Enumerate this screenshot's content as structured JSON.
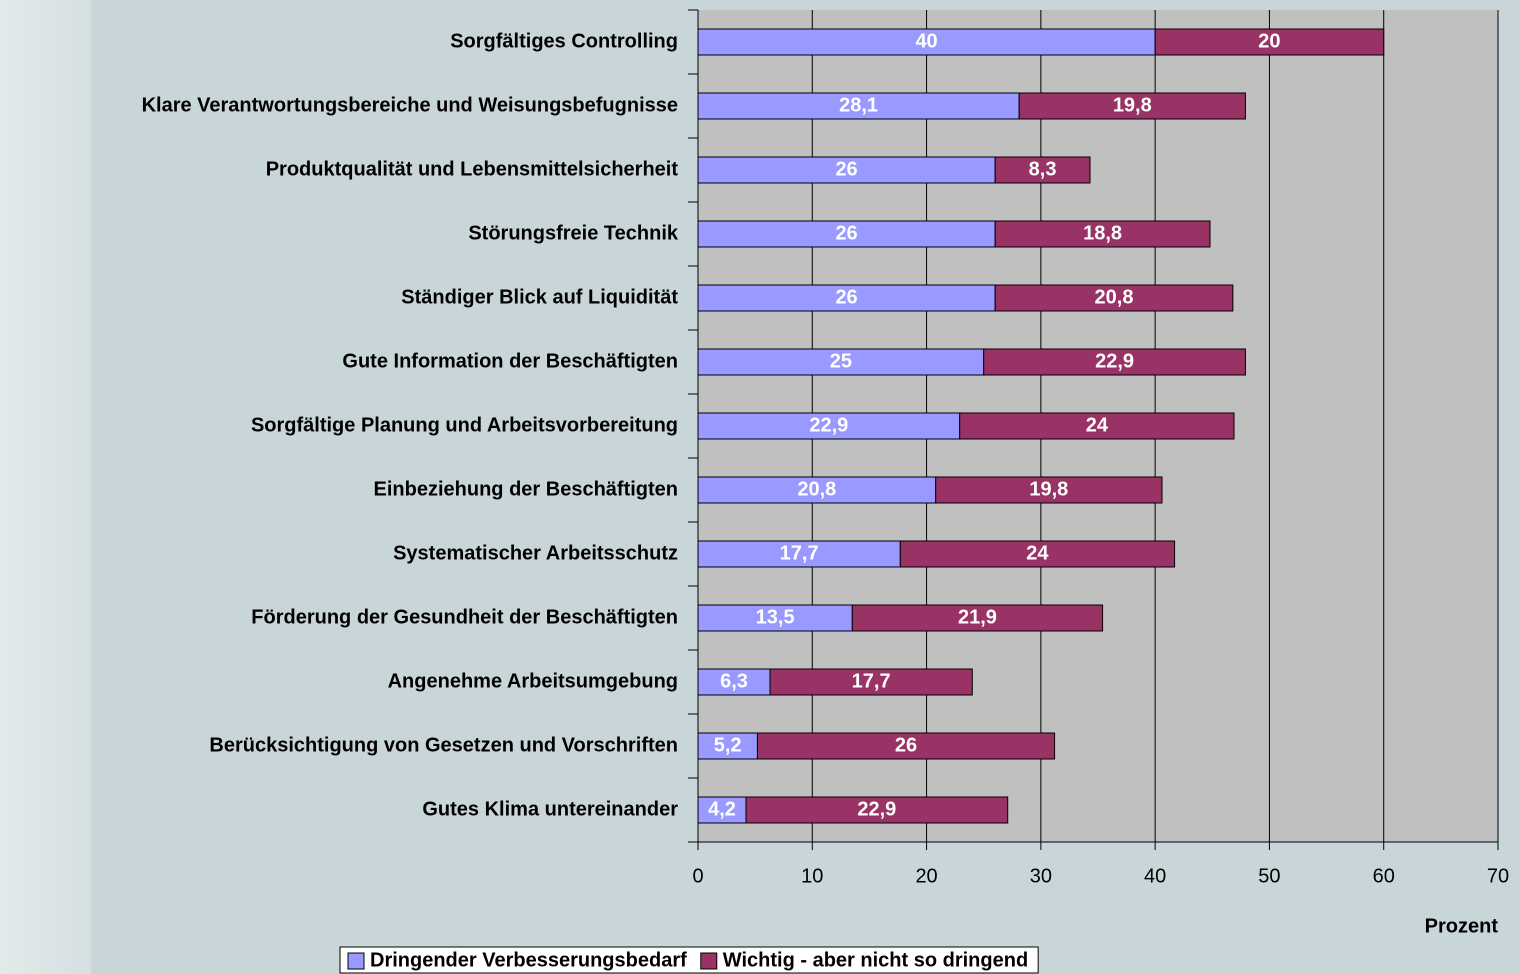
{
  "chart_data": {
    "type": "stacked-barh",
    "categories": [
      "Sorgfältiges Controlling",
      "Klare Verantwortungsbereiche und Weisungsbefugnisse",
      "Produktqualität und Lebensmittelsicherheit",
      "Störungsfreie Technik",
      "Ständiger Blick auf Liquidität",
      "Gute Information der Beschäftigten",
      "Sorgfältige Planung und Arbeitsvorbereitung",
      "Einbeziehung der Beschäftigten",
      "Systematischer Arbeitsschutz",
      "Förderung der Gesundheit der Beschäftigten",
      "Angenehme Arbeitsumgebung",
      "Berücksichtigung von Gesetzen und Vorschriften",
      "Gutes Klima untereinander"
    ],
    "series": [
      {
        "name": "Dringender Verbesserungsbedarf",
        "color": "#9999ff",
        "values": [
          40,
          28.1,
          26,
          26,
          26,
          25,
          22.9,
          20.8,
          17.7,
          13.5,
          6.3,
          5.2,
          4.2
        ],
        "value_labels": [
          "40",
          "28,1",
          "26",
          "26",
          "26",
          "25",
          "22,9",
          "20,8",
          "17,7",
          "13,5",
          "6,3",
          "5,2",
          "4,2"
        ]
      },
      {
        "name": "Wichtig - aber nicht so dringend",
        "color": "#993366",
        "values": [
          20,
          19.8,
          8.3,
          18.8,
          20.8,
          22.9,
          24,
          19.8,
          24,
          21.9,
          17.7,
          26,
          22.9
        ],
        "value_labels": [
          "20",
          "19,8",
          "8,3",
          "18,8",
          "20,8",
          "22,9",
          "24",
          "19,8",
          "24",
          "21,9",
          "17,7",
          "26",
          "22,9"
        ]
      }
    ],
    "xlabel": "Prozent",
    "xlim": [
      0,
      70
    ],
    "xticks": [
      0,
      10,
      20,
      30,
      40,
      50,
      60,
      70
    ],
    "grid": true,
    "legend": "bottom"
  }
}
